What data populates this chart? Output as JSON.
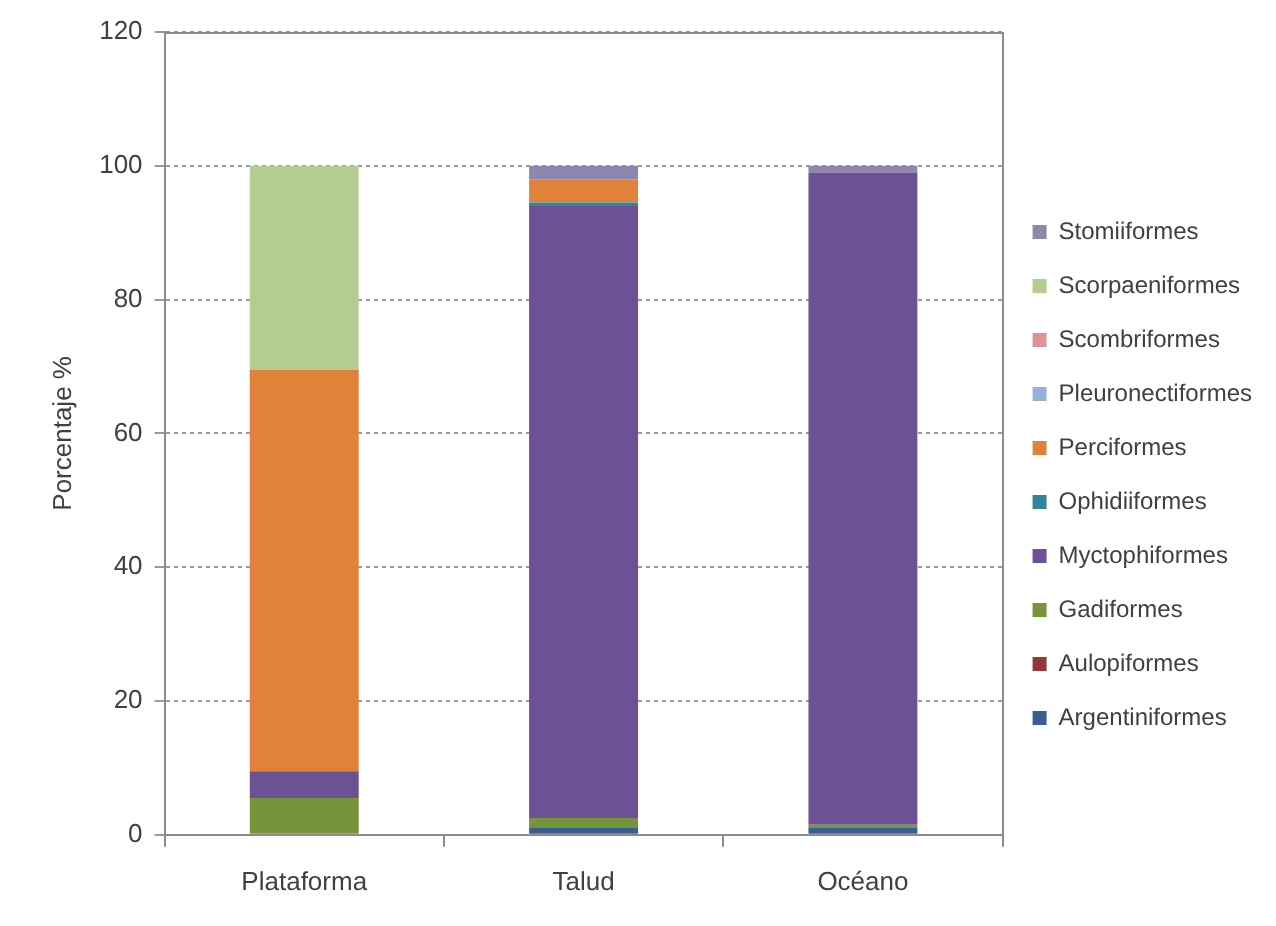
{
  "chart_data": {
    "type": "bar",
    "stacked": true,
    "ylabel": "Porcentaje %",
    "categories": [
      "Plataforma",
      "Talud",
      "Océano"
    ],
    "series": [
      {
        "name": "Argentiniformes",
        "color": "#376092",
        "values": [
          0,
          1,
          1
        ]
      },
      {
        "name": "Aulopiformes",
        "color": "#953735",
        "values": [
          0,
          0,
          0
        ]
      },
      {
        "name": "Gadiformes",
        "color": "#77933c",
        "values": [
          5.5,
          1.5,
          0.5
        ]
      },
      {
        "name": "Myctophiformes",
        "color": "#6c5294",
        "values": [
          4,
          91.5,
          97.5
        ]
      },
      {
        "name": "Ophidiiformes",
        "color": "#31859c",
        "values": [
          0,
          0.5,
          0
        ]
      },
      {
        "name": "Perciformes",
        "color": "#e0823a",
        "values": [
          60,
          3.5,
          0
        ]
      },
      {
        "name": "Pleuronectiformes",
        "color": "#95b3d7",
        "values": [
          0,
          0,
          0
        ]
      },
      {
        "name": "Scombriformes",
        "color": "#d99694",
        "values": [
          0,
          0,
          0
        ]
      },
      {
        "name": "Scorpaeniformes",
        "color": "#b3cc8f",
        "values": [
          30.5,
          0,
          0
        ]
      },
      {
        "name": "Stomiiformes",
        "color": "#8e86ae",
        "values": [
          0,
          2,
          1
        ]
      }
    ],
    "ylim": [
      0,
      120
    ],
    "yticks": [
      0,
      20,
      40,
      60,
      80,
      100,
      120
    ],
    "grid": "y",
    "legend": "right"
  }
}
